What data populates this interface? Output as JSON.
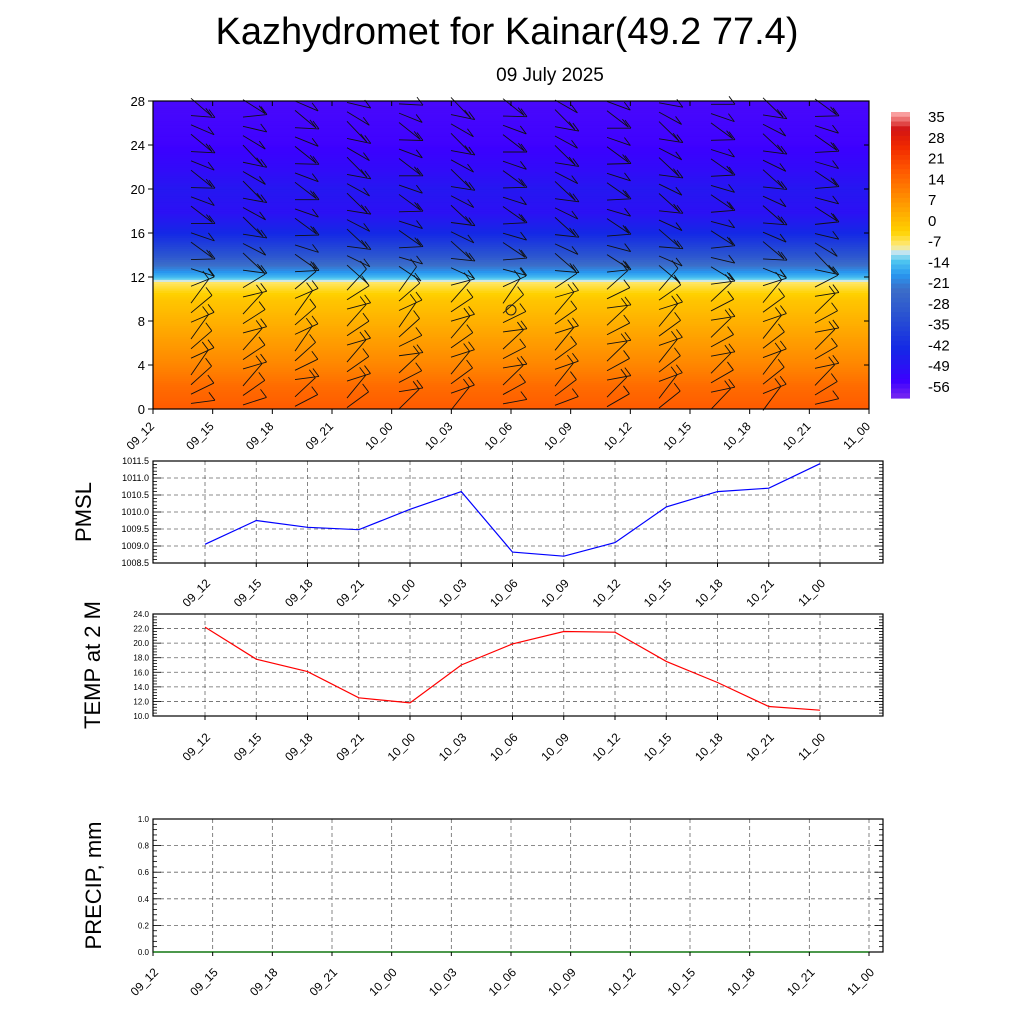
{
  "title": "Kazhydromet for Kainar(49.2 77.4)",
  "subtitle": "09 July 2025",
  "colors": {
    "pressure_line": "#0000ff",
    "temperature_line": "#ff0000",
    "precip_line": "#007a00",
    "grid": "#555555"
  },
  "time_labels": [
    "09_12",
    "09_15",
    "09_18",
    "09_21",
    "10_00",
    "10_03",
    "10_06",
    "10_09",
    "10_12",
    "10_15",
    "10_18",
    "10_21",
    "11_00"
  ],
  "chart_data": [
    {
      "type": "heatmap",
      "name": "cross-section",
      "x": [
        "09_12",
        "09_15",
        "09_18",
        "09_21",
        "10_00",
        "10_03",
        "10_06",
        "10_09",
        "10_12",
        "10_15",
        "10_18",
        "10_21",
        "11_00"
      ],
      "ylim": [
        0,
        28
      ],
      "yticks": [
        0,
        4,
        8,
        12,
        16,
        20,
        24,
        28
      ],
      "colorbar_labels": [
        "35",
        "28",
        "21",
        "14",
        "7",
        "0",
        "-7",
        "-14",
        "-21",
        "-28",
        "-35",
        "-42",
        "-49",
        "-56"
      ],
      "colorbar_range": [
        -63,
        42
      ],
      "description_fields": "shaded temperature with wind barbs",
      "vertical_profile": [
        {
          "y": 0,
          "value": 20
        },
        {
          "y": 2,
          "value": 17
        },
        {
          "y": 4,
          "value": 12
        },
        {
          "y": 6,
          "value": 8
        },
        {
          "y": 8,
          "value": 4
        },
        {
          "y": 10,
          "value": 0
        },
        {
          "y": 11.5,
          "value": -6
        },
        {
          "y": 12,
          "value": -14
        },
        {
          "y": 13,
          "value": -22
        },
        {
          "y": 14,
          "value": -32
        },
        {
          "y": 16,
          "value": -45
        },
        {
          "y": 18,
          "value": -52
        },
        {
          "y": 20,
          "value": -50
        },
        {
          "y": 22,
          "value": -54
        },
        {
          "y": 24,
          "value": -57
        },
        {
          "y": 28,
          "value": -58
        }
      ]
    },
    {
      "type": "line",
      "ylabel": "PMSL",
      "x": [
        "09_12",
        "09_15",
        "09_18",
        "09_21",
        "10_00",
        "10_03",
        "10_06",
        "10_09",
        "10_12",
        "10_15",
        "10_18",
        "10_21",
        "11_00"
      ],
      "series": [
        {
          "values": [
            1009.05,
            1009.75,
            1009.55,
            1009.48,
            1010.08,
            1010.6,
            1008.82,
            1008.7,
            1009.1,
            1010.15,
            1010.6,
            1010.7,
            1011.42
          ]
        }
      ],
      "ylim": [
        1008.5,
        1011.5
      ],
      "yticks": [
        "1008.5",
        "1009.0",
        "1009.5",
        "1010.0",
        "1010.5",
        "1011.0",
        "1011.5"
      ],
      "grid": true
    },
    {
      "type": "line",
      "ylabel": "TEMP at 2 M",
      "x": [
        "09_12",
        "09_15",
        "09_18",
        "09_21",
        "10_00",
        "10_03",
        "10_06",
        "10_09",
        "10_12",
        "10_15",
        "10_18",
        "10_21",
        "11_00"
      ],
      "series": [
        {
          "values": [
            22.2,
            17.8,
            16.1,
            12.5,
            11.8,
            17.0,
            19.9,
            21.6,
            21.5,
            17.5,
            14.6,
            11.3,
            10.8
          ]
        }
      ],
      "ylim": [
        10.0,
        24.0
      ],
      "yticks": [
        "10.0",
        "12.0",
        "14.0",
        "16.0",
        "18.0",
        "20.0",
        "22.0",
        "24.0"
      ],
      "grid": true
    },
    {
      "type": "line",
      "ylabel": "PRECIP, mm",
      "x": [
        "09_12",
        "09_15",
        "09_18",
        "09_21",
        "10_00",
        "10_03",
        "10_06",
        "10_09",
        "10_12",
        "10_15",
        "10_18",
        "10_21",
        "11_00"
      ],
      "series": [
        {
          "values": [
            0,
            0,
            0,
            0,
            0,
            0,
            0,
            0,
            0,
            0,
            0,
            0,
            0
          ]
        }
      ],
      "ylim": [
        0.0,
        1.0
      ],
      "yticks": [
        "0.0",
        "0.2",
        "0.4",
        "0.6",
        "0.8",
        "1.0"
      ],
      "grid": true
    }
  ]
}
